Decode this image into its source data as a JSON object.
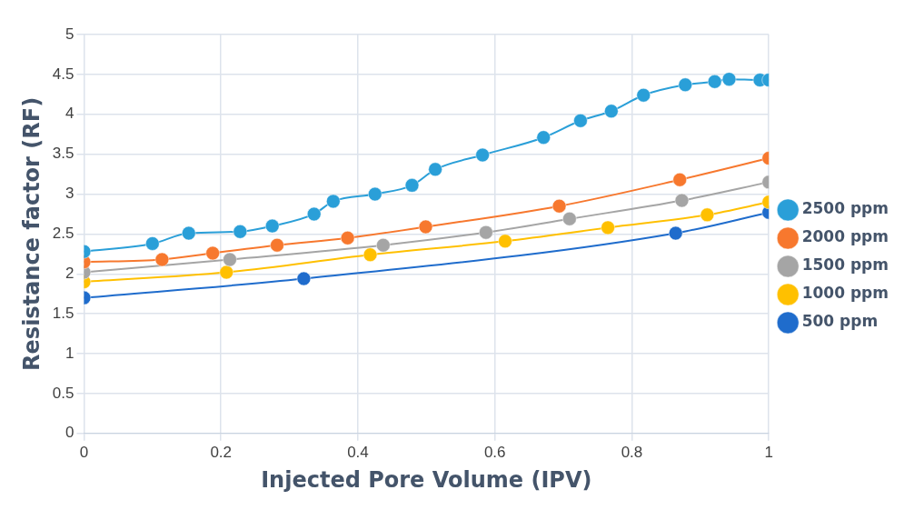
{
  "chart_data": {
    "type": "line",
    "xlabel": "Injected Pore Volume (IPV)",
    "ylabel": "Resistance factor (RF)",
    "xlim": [
      0,
      1
    ],
    "xticks": [
      0,
      0.2,
      0.4,
      0.6,
      0.8,
      1
    ],
    "ylim": [
      0,
      5
    ],
    "yticks": [
      0,
      0.5,
      1,
      1.5,
      2,
      2.5,
      3,
      3.5,
      4,
      4.5,
      5
    ],
    "grid": true,
    "legend": "right",
    "marker": "circle",
    "line_style": "solid",
    "series": [
      {
        "name": "2500 ppm",
        "color": "#2a9fd8",
        "x": [
          0,
          0.1,
          0.153,
          0.228,
          0.275,
          0.336,
          0.364,
          0.425,
          0.479,
          0.513,
          0.582,
          0.671,
          0.725,
          0.77,
          0.817,
          0.878,
          0.921,
          0.942,
          0.987,
          1
        ],
        "values": [
          2.28,
          2.38,
          2.51,
          2.53,
          2.6,
          2.75,
          2.91,
          3.0,
          3.11,
          3.31,
          3.49,
          3.71,
          3.92,
          4.04,
          4.24,
          4.37,
          4.41,
          4.44,
          4.43,
          4.43
        ]
      },
      {
        "name": "2000 ppm",
        "color": "#f7782e",
        "x": [
          0,
          0.114,
          0.188,
          0.282,
          0.385,
          0.499,
          0.694,
          0.87,
          1
        ],
        "values": [
          2.15,
          2.18,
          2.26,
          2.36,
          2.45,
          2.59,
          2.85,
          3.18,
          3.45
        ]
      },
      {
        "name": "1500 ppm",
        "color": "#a5a5a5",
        "x": [
          0,
          0.213,
          0.437,
          0.587,
          0.709,
          0.873,
          1
        ],
        "values": [
          2.02,
          2.18,
          2.36,
          2.52,
          2.69,
          2.92,
          3.15
        ]
      },
      {
        "name": "1000 ppm",
        "color": "#ffc000",
        "x": [
          0,
          0.208,
          0.418,
          0.615,
          0.765,
          0.91,
          1
        ],
        "values": [
          1.9,
          2.02,
          2.24,
          2.41,
          2.58,
          2.74,
          2.9
        ]
      },
      {
        "name": "500 ppm",
        "color": "#1f6ccc",
        "x": [
          0,
          0.321,
          0.864,
          1
        ],
        "values": [
          1.7,
          1.94,
          2.51,
          2.77
        ]
      }
    ]
  }
}
